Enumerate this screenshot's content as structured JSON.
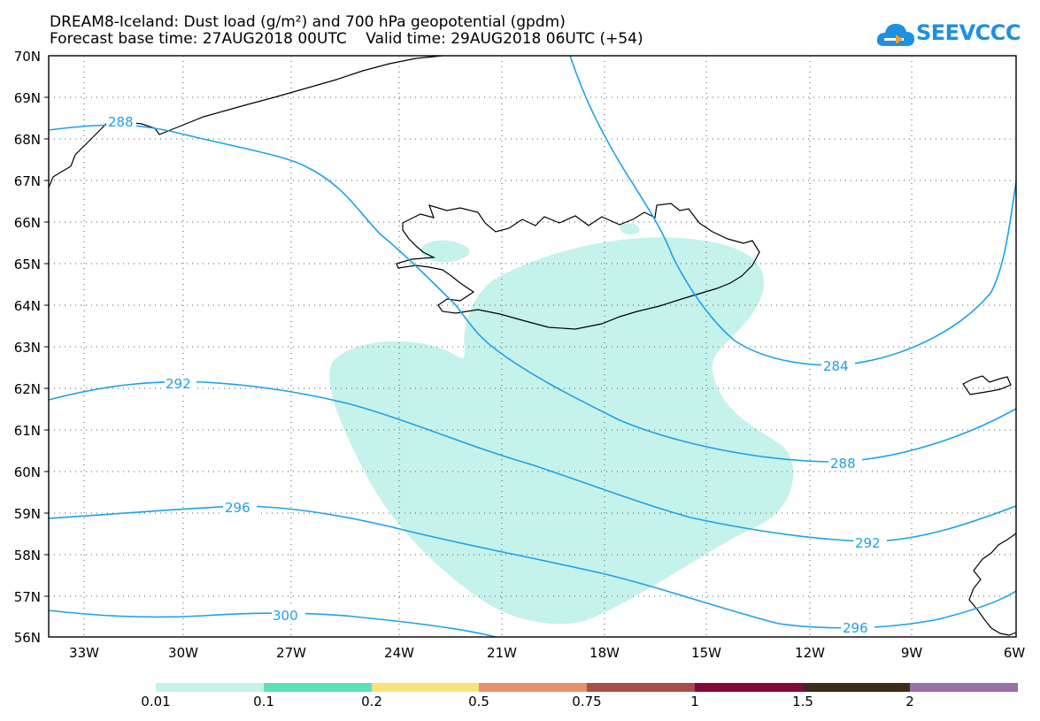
{
  "header": {
    "title_line1": "DREAM8-Iceland: Dust load (g/m²) and 700 hPa geopotential (gpdm)",
    "title_line2": "Forecast base time: 27AUG2018 00UTC    Valid time: 29AUG2018 06UTC (+54)"
  },
  "logo": {
    "text": "SEEVCCC",
    "icon": "cloud-icon",
    "color": "#1e90e0"
  },
  "map": {
    "lat_labels": [
      "70N",
      "69N",
      "68N",
      "67N",
      "66N",
      "65N",
      "64N",
      "63N",
      "62N",
      "61N",
      "60N",
      "59N",
      "58N",
      "57N",
      "56N"
    ],
    "lon_labels": [
      "33W",
      "30W",
      "27W",
      "24W",
      "21W",
      "18W",
      "15W",
      "12W",
      "9W",
      "6W"
    ],
    "contour_color": "#1ea0ea",
    "contour_labels": [
      "288",
      "284",
      "292",
      "288",
      "296",
      "292",
      "300",
      "296"
    ],
    "dust_fill_color": "#c6f2ec"
  },
  "legend": {
    "labels": [
      "0.01",
      "0.1",
      "0.2",
      "0.5",
      "0.75",
      "1",
      "1.5",
      "2"
    ],
    "colors": [
      "#c6f2ec",
      "#5fe0b8",
      "#f8e27a",
      "#e8906a",
      "#a84e4a",
      "#840838",
      "#3c2a1a",
      "#9a70a8"
    ]
  }
}
